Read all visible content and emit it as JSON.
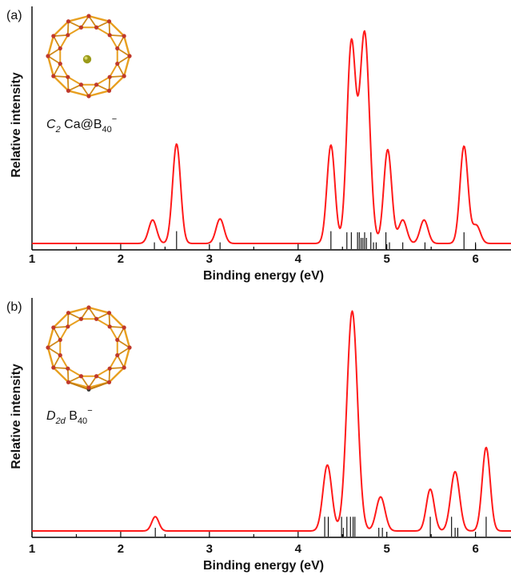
{
  "colors": {
    "curve": "#ff1a1a",
    "stick": "#000000",
    "axis": "#000000",
    "cage": "#e8a020",
    "boron": "#c0392b",
    "calcium": "#9a9a1a"
  },
  "chart_data": [
    {
      "type": "line",
      "panel_label": "(a)",
      "species": {
        "prefix": "C",
        "prefix_sub": "2",
        "main": " Ca@B",
        "main_sub": "40",
        "charge": "−"
      },
      "xlabel": "Binding energy (eV)",
      "ylabel": "Relative intensity",
      "xlim": [
        1,
        6.4
      ],
      "ylim": [
        0,
        1.06
      ],
      "xticks": [
        1,
        2,
        3,
        4,
        5,
        6
      ],
      "peaks": [
        {
          "x": 2.36,
          "height": 0.105,
          "width": 0.045
        },
        {
          "x": 2.63,
          "height": 0.445,
          "width": 0.045
        },
        {
          "x": 3.12,
          "height": 0.11,
          "width": 0.045
        },
        {
          "x": 4.37,
          "height": 0.44,
          "width": 0.045
        },
        {
          "x": 4.6,
          "height": 0.89,
          "width": 0.05
        },
        {
          "x": 4.75,
          "height": 0.94,
          "width": 0.055
        },
        {
          "x": 5.01,
          "height": 0.42,
          "width": 0.045
        },
        {
          "x": 5.18,
          "height": 0.105,
          "width": 0.045
        },
        {
          "x": 5.42,
          "height": 0.105,
          "width": 0.045
        },
        {
          "x": 5.87,
          "height": 0.435,
          "width": 0.045
        },
        {
          "x": 6.01,
          "height": 0.08,
          "width": 0.045
        }
      ],
      "sticks": [
        {
          "x": 2.38,
          "h": 0.03
        },
        {
          "x": 2.63,
          "h": 0.08
        },
        {
          "x": 3.12,
          "h": 0.03
        },
        {
          "x": 4.37,
          "h": 0.08
        },
        {
          "x": 4.55,
          "h": 0.075
        },
        {
          "x": 4.6,
          "h": 0.075
        },
        {
          "x": 4.67,
          "h": 0.075
        },
        {
          "x": 4.69,
          "h": 0.075
        },
        {
          "x": 4.71,
          "h": 0.05
        },
        {
          "x": 4.73,
          "h": 0.05
        },
        {
          "x": 4.75,
          "h": 0.075
        },
        {
          "x": 4.77,
          "h": 0.05
        },
        {
          "x": 4.82,
          "h": 0.075
        },
        {
          "x": 4.85,
          "h": 0.03
        },
        {
          "x": 4.88,
          "h": 0.03
        },
        {
          "x": 4.99,
          "h": 0.075
        },
        {
          "x": 5.03,
          "h": 0.03
        },
        {
          "x": 5.18,
          "h": 0.03
        },
        {
          "x": 5.43,
          "h": 0.03
        },
        {
          "x": 5.87,
          "h": 0.075
        },
        {
          "x": 6.0,
          "h": 0.03
        }
      ]
    },
    {
      "type": "line",
      "panel_label": "(b)",
      "species": {
        "prefix": "D",
        "prefix_sub": "2d",
        "main": " B",
        "main_sub": "40",
        "charge": "−"
      },
      "xlabel": "Binding energy (eV)",
      "ylabel": "Relative intensity",
      "xlim": [
        1,
        6.4
      ],
      "ylim": [
        0,
        1.06
      ],
      "xticks": [
        1,
        2,
        3,
        4,
        5,
        6
      ],
      "peaks": [
        {
          "x": 2.39,
          "height": 0.065,
          "width": 0.04
        },
        {
          "x": 4.33,
          "height": 0.3,
          "width": 0.05
        },
        {
          "x": 4.61,
          "height": 1.0,
          "width": 0.06
        },
        {
          "x": 4.93,
          "height": 0.155,
          "width": 0.05
        },
        {
          "x": 5.49,
          "height": 0.19,
          "width": 0.045
        },
        {
          "x": 5.77,
          "height": 0.27,
          "width": 0.05
        },
        {
          "x": 6.12,
          "height": 0.38,
          "width": 0.045
        }
      ],
      "sticks": [
        {
          "x": 2.39,
          "h": 0.04
        },
        {
          "x": 4.3,
          "h": 0.09
        },
        {
          "x": 4.34,
          "h": 0.09
        },
        {
          "x": 4.49,
          "h": 0.09
        },
        {
          "x": 4.51,
          "h": 0.04
        },
        {
          "x": 4.55,
          "h": 0.09
        },
        {
          "x": 4.59,
          "h": 0.09
        },
        {
          "x": 4.62,
          "h": 0.09
        },
        {
          "x": 4.64,
          "h": 0.09
        },
        {
          "x": 4.91,
          "h": 0.04
        },
        {
          "x": 4.95,
          "h": 0.04
        },
        {
          "x": 5.49,
          "h": 0.09
        },
        {
          "x": 5.73,
          "h": 0.09
        },
        {
          "x": 5.77,
          "h": 0.04
        },
        {
          "x": 5.8,
          "h": 0.04
        },
        {
          "x": 6.12,
          "h": 0.09
        }
      ]
    }
  ]
}
